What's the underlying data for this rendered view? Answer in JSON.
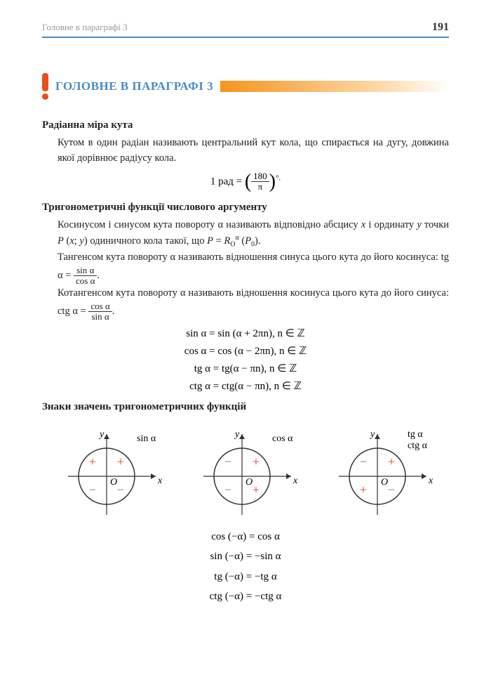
{
  "header": {
    "running_title": "Головне в параграфі 3",
    "page_number": "191"
  },
  "banner": {
    "title": "ГОЛОВНЕ В ПАРАГРАФІ 3"
  },
  "section1": {
    "heading": "Радіанна міра кута",
    "text": "Кутом в один радіан називають центральний кут кола, що спирається на дугу, довжина якої дорівнює радіусу кола.",
    "formula_prefix": "1 рад =",
    "formula_num": "180",
    "formula_den": "π",
    "formula_suffix": "°."
  },
  "section2": {
    "heading": "Тригонометричні функції числового аргументу",
    "para1a": "Косинусом і синусом кута повороту α називають відповідно абсцису ",
    "para1b": " і ординату ",
    "para1c": " точки ",
    "para1d": " одиничного кола такої, що ",
    "para1e": ".",
    "para2a": "Тангенсом кута повороту α називають відношення синуса цього кута до його косинуса:  tg α = ",
    "tg_num": "sin α",
    "tg_den": "cos α",
    "para3a": "Котангенсом кута повороту α називають відношення косинуса цього кута до його синуса:  ctg α = ",
    "ctg_num": "cos α",
    "ctg_den": "sin α",
    "period_sin": "sin α = sin (α + 2πn),   n ∈ ℤ",
    "period_cos": "cos α = cos (α − 2πn),   n ∈ ℤ",
    "period_tg": "tg α = tg(α − πn),   n ∈ ℤ",
    "period_ctg": "ctg α = ctg(α − πn),   n ∈ ℤ"
  },
  "section3": {
    "heading": "Знаки значень тригонометричних функцій",
    "circles": [
      {
        "func_label": "sin α",
        "q1": "+",
        "q2": "+",
        "q3": "−",
        "q4": "−",
        "q1_color": "#d9442a",
        "q2_color": "#d9442a",
        "q3_color": "#4a8bc5",
        "q4_color": "#4a8bc5"
      },
      {
        "func_label": "cos α",
        "q1": "+",
        "q2": "−",
        "q3": "−",
        "q4": "+",
        "q1_color": "#d9442a",
        "q2_color": "#4a8bc5",
        "q3_color": "#4a8bc5",
        "q4_color": "#d9442a"
      },
      {
        "func_label": "tg α\nctg α",
        "q1": "+",
        "q2": "−",
        "q3": "+",
        "q4": "−",
        "q1_color": "#d9442a",
        "q2_color": "#4a8bc5",
        "q3_color": "#d9442a",
        "q4_color": "#4a8bc5"
      }
    ],
    "axis_x": "x",
    "axis_y": "y",
    "origin": "O",
    "neg_cos": "cos (−α) = cos α",
    "neg_sin": "sin (−α) = −sin α",
    "neg_tg": "tg (−α) = −tg α",
    "neg_ctg": "ctg (−α) = −ctg α"
  },
  "colors": {
    "rule": "#4a8bc5",
    "accent": "#e94e1b",
    "plus": "#d9442a",
    "minus": "#4a8bc5"
  }
}
